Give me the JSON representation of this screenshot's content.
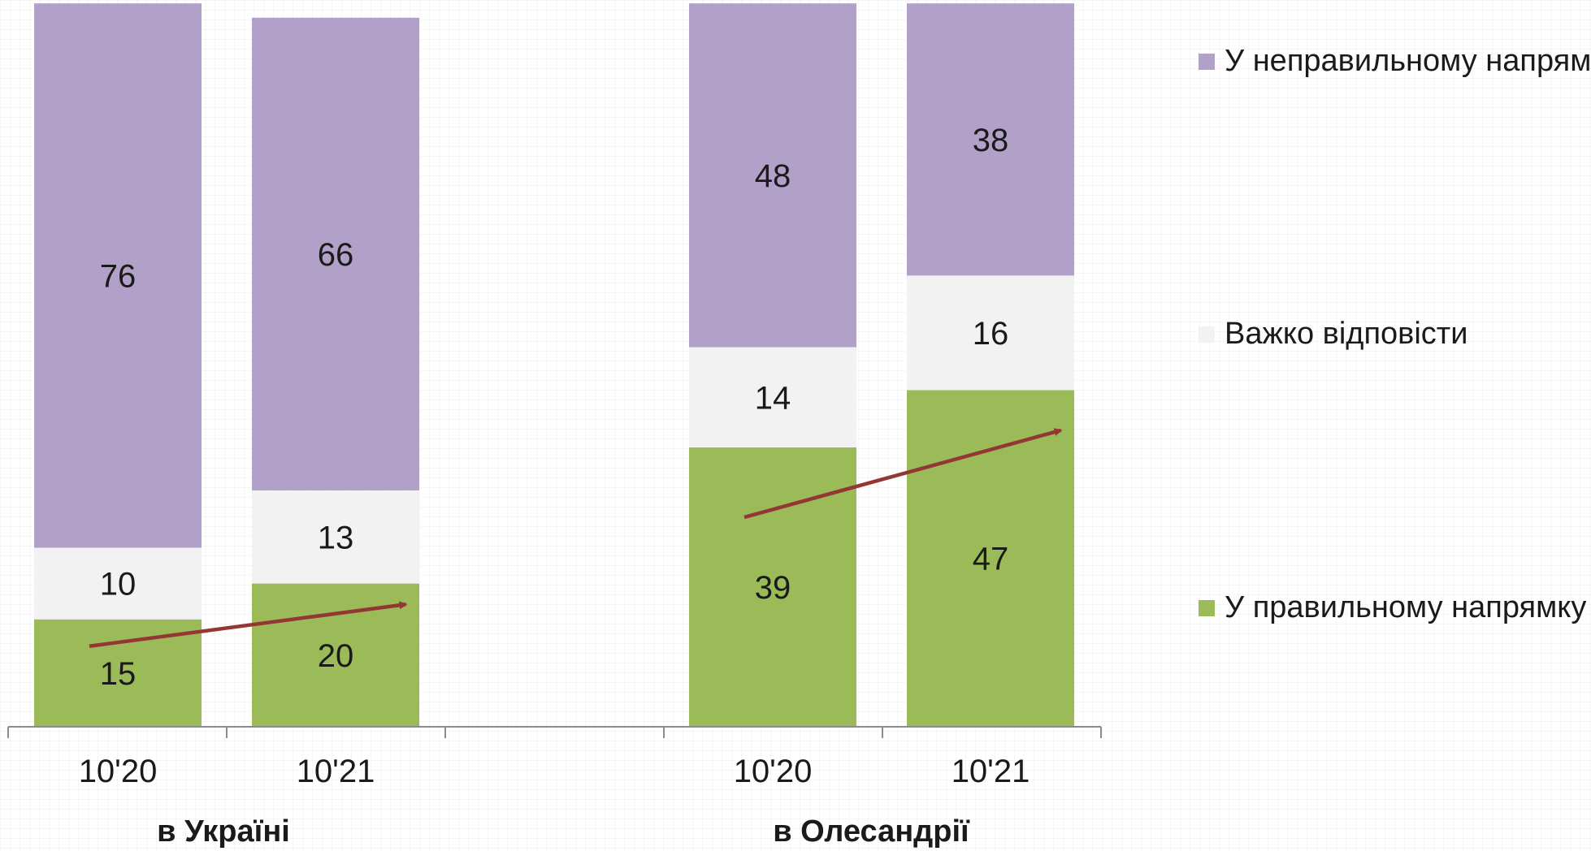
{
  "chart_data": {
    "type": "bar",
    "stacked": true,
    "groups": [
      {
        "name": "в Україні",
        "categories": [
          "10'20",
          "10'21"
        ]
      },
      {
        "name": "в Олесандрії",
        "categories": [
          "10'20",
          "10'21"
        ]
      }
    ],
    "series": [
      {
        "name": "У правильному напрямку",
        "color": "#9bbb59",
        "values": [
          15,
          20,
          39,
          47
        ]
      },
      {
        "name": "Важко відповісти",
        "color": "#f2f2f2",
        "values": [
          10,
          13,
          14,
          16
        ]
      },
      {
        "name": "У неправильному напрямку",
        "color": "#b1a0c7",
        "values": [
          76,
          66,
          48,
          38
        ]
      }
    ],
    "legend_position": "right",
    "legend_order": [
      "У неправильному напрямку",
      "Важко відповісти",
      "У правильному напрямку"
    ],
    "trend_arrows": [
      {
        "group": "в Україні",
        "from": "10'20",
        "to": "10'21",
        "color": "#943634"
      },
      {
        "group": "в Олесандрії",
        "from": "10'20",
        "to": "10'21",
        "color": "#943634"
      }
    ],
    "grid": false
  }
}
